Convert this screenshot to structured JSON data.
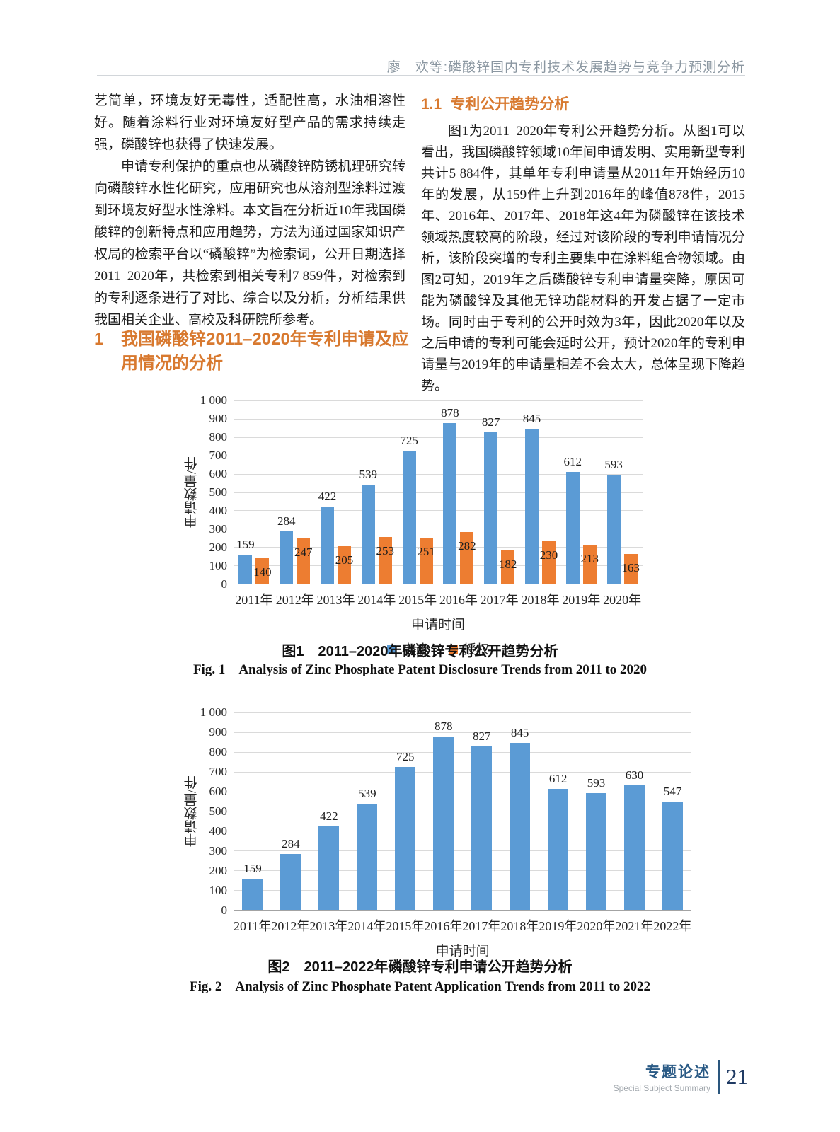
{
  "header": {
    "running_title": "廖　欢等:磷酸锌国内专利技术发展趋势与竞争力预测分析"
  },
  "left_column": {
    "paragraph_continued": "艺简单，环境友好无毒性，适配性高，水油相溶性好。随着涂料行业对环境友好型产品的需求持续走强，磷酸锌也获得了快速发展。",
    "paragraph_2": "申请专利保护的重点也从磷酸锌防锈机理研究转向磷酸锌水性化研究，应用研究也从溶剂型涂料过渡到环境友好型水性涂料。本文旨在分析近10年我国磷酸锌的创新特点和应用趋势，方法为通过国家知识产权局的检索平台以“磷酸锌”为检索词，公开日期选择2011–2020年，共检索到相关专利7 859件，对检索到的专利逐条进行了对比、综合以及分析，分析结果供我国相关企业、高校及科研院所参考。",
    "section_heading": {
      "number": "1",
      "title": "我国磷酸锌2011–2020年专利申请及应用情况的分析"
    }
  },
  "right_column": {
    "subsection_heading": {
      "number": "1.1",
      "title": "专利公开趋势分析"
    },
    "paragraph": "图1为2011–2020年专利公开趋势分析。从图1可以看出，我国磷酸锌领域10年间申请发明、实用新型专利共计5 884件，其单年专利申请量从2011年开始经历10年的发展，从159件上升到2016年的峰值878件，2015年、2016年、2017年、2018年这4年为磷酸锌在该技术领域热度较高的阶段，经过对该阶段的专利申请情况分析，该阶段突增的专利主要集中在涂料组合物领域。由图2可知，2019年之后磷酸锌专利申请量突降，原因可能为磷酸锌及其他无锌功能材料的开发占据了一定市场。同时由于专利的公开时效为3年，因此2020年以及之后申请的专利可能会延时公开，预计2020年的专利申请量与2019年的申请量相差不会太大，总体呈现下降趋势。"
  },
  "figure1": {
    "caption_cn": "图1　2011–2020年磷酸锌专利公开趋势分析",
    "caption_en": "Fig. 1　Analysis of Zinc Phosphate Patent Disclosure Trends from 2011 to 2020"
  },
  "figure2": {
    "caption_cn": "图2　2011–2022年磷酸锌专利申请公开趋势分析",
    "caption_en": "Fig. 2　Analysis of Zinc Phosphate Patent Application Trends from 2011 to 2022"
  },
  "footer": {
    "section_cn": "专题论述",
    "section_en": "Special Subject Summary",
    "page_number": "21"
  },
  "colors": {
    "accent_orange": "#d8792f",
    "bar_blue": "#5B9BD5",
    "bar_orange": "#ED7D31",
    "gridline": "#dadada",
    "footer_blue": "#2a567d",
    "header_gray": "#8b97a1"
  },
  "chart_data": [
    {
      "type": "bar",
      "categories": [
        "2011年",
        "2012年",
        "2013年",
        "2014年",
        "2015年",
        "2016年",
        "2017年",
        "2018年",
        "2019年",
        "2020年"
      ],
      "series": [
        {
          "name": "申请",
          "color": "#5B9BD5",
          "values": [
            159,
            284,
            422,
            539,
            725,
            878,
            827,
            845,
            612,
            593
          ],
          "label_position": "above"
        },
        {
          "name": "授权",
          "color": "#ED7D31",
          "values": [
            140,
            247,
            205,
            253,
            251,
            282,
            182,
            230,
            213,
            163
          ],
          "label_position": "inside"
        }
      ],
      "xlabel": "申请时间",
      "ylabel": "申请数量/件",
      "ylim": [
        0,
        1000
      ],
      "yticks": [
        "0",
        "100",
        "200",
        "300",
        "400",
        "500",
        "600",
        "700",
        "800",
        "900",
        "1 000"
      ],
      "grid": true,
      "show_legend": true,
      "legend_position": "bottom"
    },
    {
      "type": "bar",
      "categories": [
        "2011年",
        "2012年",
        "2013年",
        "2014年",
        "2015年",
        "2016年",
        "2017年",
        "2018年",
        "2019年",
        "2020年",
        "2021年",
        "2022年"
      ],
      "series": [
        {
          "name": "申请",
          "color": "#5B9BD5",
          "values": [
            159,
            284,
            422,
            539,
            725,
            878,
            827,
            845,
            612,
            593,
            630,
            547
          ],
          "label_position": "above"
        }
      ],
      "xlabel": "申请时间",
      "ylabel": "申请数量/件",
      "ylim": [
        0,
        1000
      ],
      "yticks": [
        "0",
        "100",
        "200",
        "300",
        "400",
        "500",
        "600",
        "700",
        "800",
        "900",
        "1 000"
      ],
      "grid": true,
      "show_legend": false,
      "legend_position": "none"
    }
  ]
}
